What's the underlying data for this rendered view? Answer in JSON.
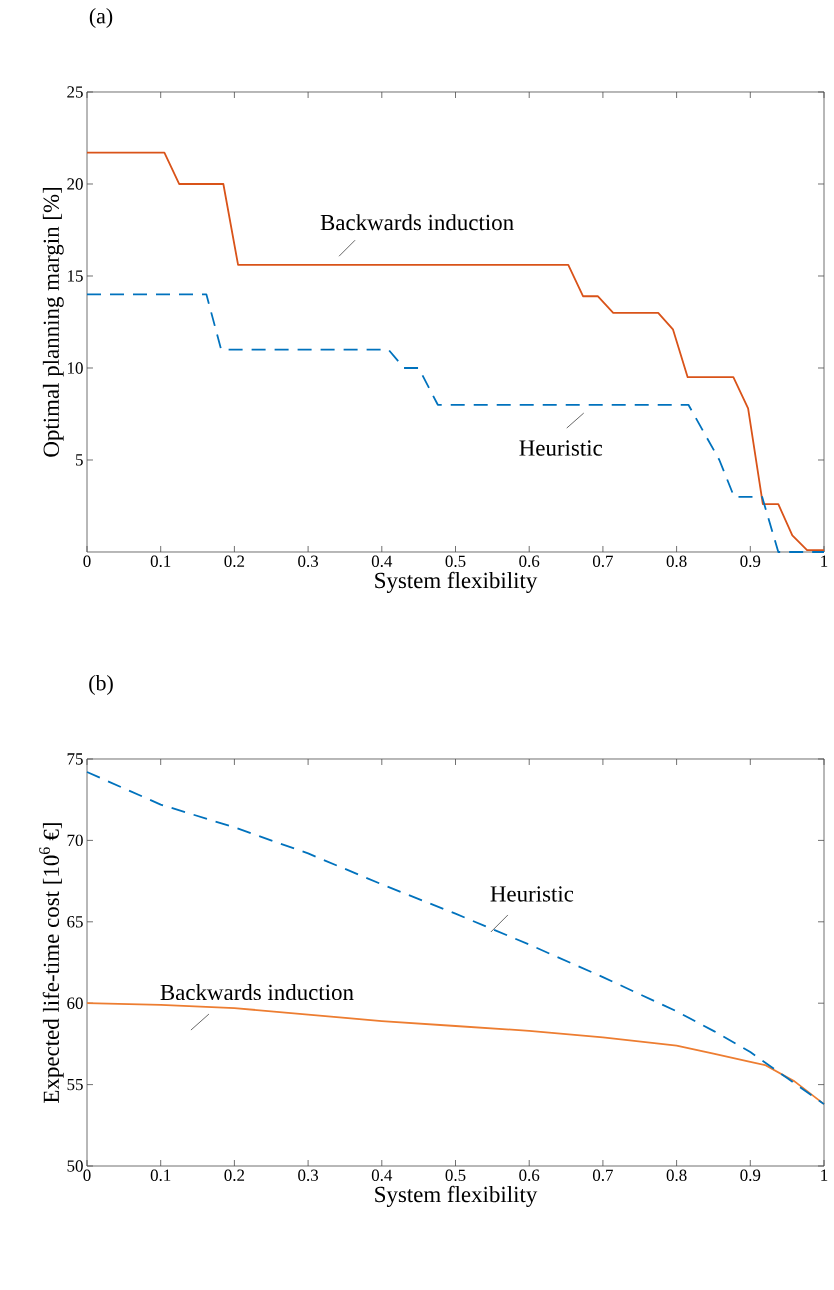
{
  "chart_data": [
    {
      "type": "line",
      "title": "(a)",
      "xlabel": "System flexibility",
      "ylabel": "Optimal planning margin [%]",
      "xlim": [
        0,
        1
      ],
      "ylim": [
        0,
        25
      ],
      "xticks": [
        0,
        0.1,
        0.2,
        0.3,
        0.4,
        0.5,
        0.6,
        0.7,
        0.8,
        0.9,
        1
      ],
      "yticks": [
        5,
        10,
        15,
        20,
        25
      ],
      "grid": false,
      "legend": false,
      "series": [
        {
          "name": "Backwards induction",
          "color": "#d95319",
          "line_style": "solid",
          "x": [
            0,
            0.105,
            0.125,
            0.185,
            0.205,
            0.653,
            0.673,
            0.693,
            0.714,
            0.775,
            0.795,
            0.815,
            0.877,
            0.897,
            0.917,
            0.938,
            0.957,
            0.977,
            1
          ],
          "values": [
            21.7,
            21.7,
            20,
            20,
            15.6,
            15.6,
            13.9,
            13.9,
            13,
            13,
            12.1,
            9.5,
            9.5,
            7.8,
            2.6,
            2.6,
            0.9,
            0.1,
            0.1
          ]
        },
        {
          "name": "Heuristic",
          "color": "#0072bd",
          "line_style": "dashed",
          "x": [
            0,
            0.162,
            0.182,
            0.409,
            0.43,
            0.45,
            0.476,
            0.816,
            0.858,
            0.878,
            0.916,
            0.938,
            1
          ],
          "values": [
            14,
            14,
            11,
            11,
            10,
            10,
            8,
            8,
            5,
            3,
            3,
            0,
            0
          ]
        }
      ]
    },
    {
      "type": "line",
      "title": "(b)",
      "xlabel": "System flexibility",
      "ylabel": "Expected life-time cost [10$^{6}$ €]",
      "xlim": [
        0,
        1
      ],
      "ylim": [
        50,
        75
      ],
      "xticks": [
        0,
        0.1,
        0.2,
        0.3,
        0.4,
        0.5,
        0.6,
        0.7,
        0.8,
        0.9,
        1
      ],
      "yticks": [
        50,
        55,
        60,
        65,
        70,
        75
      ],
      "grid": false,
      "legend": false,
      "series": [
        {
          "name": "Backwards induction",
          "color": "#ed7d31",
          "line_style": "solid",
          "x": [
            0,
            0.1,
            0.2,
            0.3,
            0.4,
            0.5,
            0.6,
            0.7,
            0.8,
            0.85,
            0.9,
            0.92,
            0.96,
            1
          ],
          "values": [
            60,
            59.9,
            59.7,
            59.3,
            58.9,
            58.6,
            58.3,
            57.9,
            57.4,
            56.9,
            56.4,
            56.2,
            55.2,
            53.8
          ]
        },
        {
          "name": "Heuristic",
          "color": "#0072bd",
          "line_style": "dashed",
          "x": [
            0,
            0.1,
            0.2,
            0.3,
            0.4,
            0.5,
            0.6,
            0.7,
            0.8,
            0.85,
            0.9,
            0.95,
            1
          ],
          "values": [
            74.2,
            72.2,
            70.8,
            69.2,
            67.3,
            65.5,
            63.6,
            61.6,
            59.5,
            58.3,
            57,
            55.4,
            53.8
          ]
        }
      ]
    }
  ]
}
